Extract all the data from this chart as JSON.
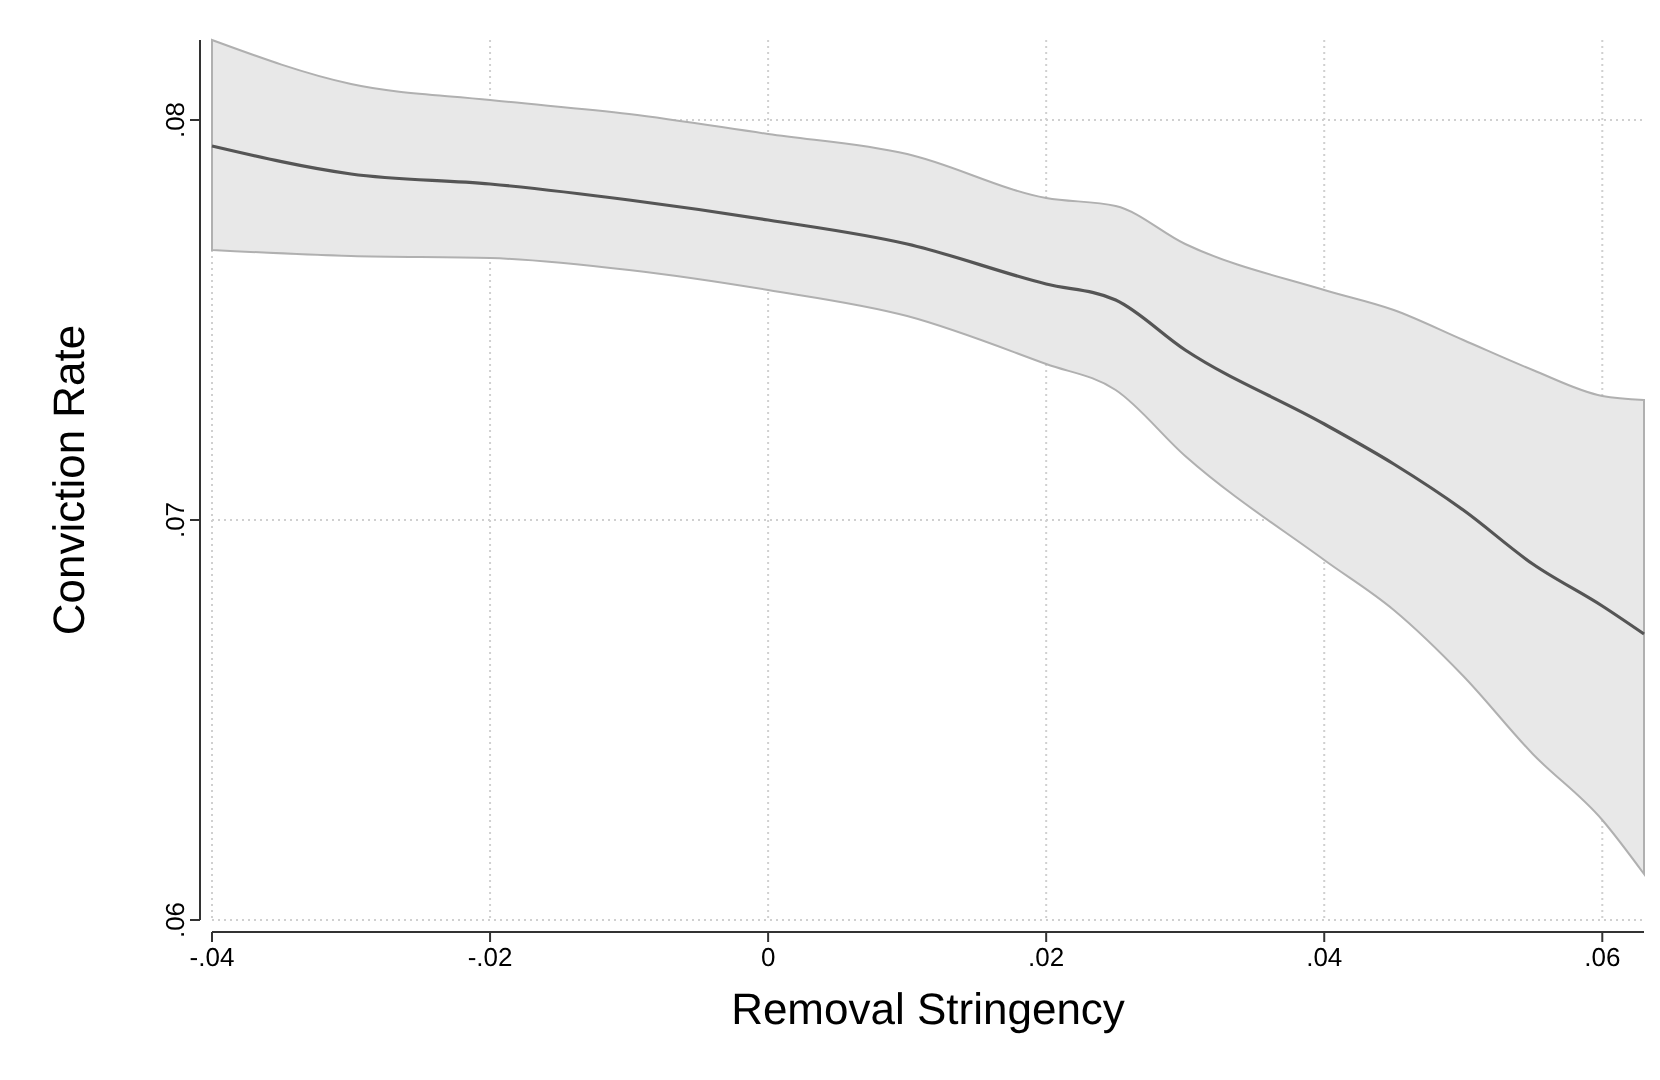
{
  "chart_data": {
    "type": "line",
    "xlabel": "Removal Stringency",
    "ylabel": "Conviction Rate",
    "x": [
      -0.04,
      -0.03,
      -0.02,
      -0.01,
      0,
      0.01,
      0.02,
      0.025,
      0.03,
      0.04,
      0.045,
      0.05,
      0.055,
      0.06,
      0.063
    ],
    "series": [
      {
        "color": "#555555",
        "values": [
          0.07935,
          0.07865,
          0.0784,
          0.078,
          0.0775,
          0.0769,
          0.0759,
          0.0755,
          0.07425,
          0.0724,
          0.0714,
          0.07025,
          0.0689,
          0.06785,
          0.06715
        ],
        "upper": [
          0.082,
          0.0809,
          0.0805,
          0.08015,
          0.07965,
          0.07915,
          0.07805,
          0.07785,
          0.0769,
          0.07575,
          0.07525,
          0.0745,
          0.07375,
          0.0731,
          0.073
        ],
        "lower": [
          0.07675,
          0.0766,
          0.07655,
          0.07625,
          0.07575,
          0.0751,
          0.0739,
          0.07325,
          0.0716,
          0.069,
          0.06775,
          0.0661,
          0.06415,
          0.0625,
          0.06115
        ]
      }
    ],
    "xlim": [
      -0.04,
      0.063
    ],
    "ylim": [
      0.06,
      0.082
    ],
    "xticks": [
      {
        "value": -0.04,
        "label": "-.04"
      },
      {
        "value": -0.02,
        "label": "-.02"
      },
      0,
      {
        "value": 0.02,
        "label": ".02"
      },
      {
        "value": 0.04,
        "label": ".04"
      },
      {
        "value": 0.06,
        "label": ".06"
      }
    ],
    "yticks": [
      {
        "value": 0.06,
        "label": ".06"
      },
      {
        "value": 0.07,
        "label": ".07"
      },
      {
        "value": 0.08,
        "label": ".08"
      }
    ],
    "grid": true,
    "line_style": "solid",
    "marker": "none"
  }
}
